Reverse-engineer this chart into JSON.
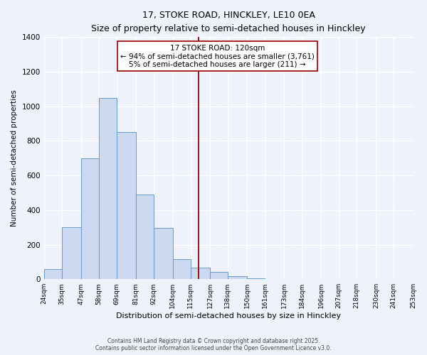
{
  "title_line1": "17, STOKE ROAD, HINCKLEY, LE10 0EA",
  "title_line2": "Size of property relative to semi-detached houses in Hinckley",
  "xlabel": "Distribution of semi-detached houses by size in Hinckley",
  "ylabel": "Number of semi-detached properties",
  "bar_color": "#ccd9f0",
  "bar_edge_color": "#6699cc",
  "background_color": "#eef2fb",
  "grid_color": "#ffffff",
  "bins": [
    24,
    35,
    47,
    58,
    69,
    81,
    92,
    104,
    115,
    127,
    138,
    150,
    161,
    173,
    184,
    196,
    207,
    218,
    230,
    241,
    253
  ],
  "bin_labels": [
    "24sqm",
    "35sqm",
    "47sqm",
    "58sqm",
    "69sqm",
    "81sqm",
    "92sqm",
    "104sqm",
    "115sqm",
    "127sqm",
    "138sqm",
    "150sqm",
    "161sqm",
    "173sqm",
    "184sqm",
    "196sqm",
    "207sqm",
    "218sqm",
    "230sqm",
    "241sqm",
    "253sqm"
  ],
  "counts": [
    60,
    300,
    700,
    1050,
    850,
    490,
    295,
    115,
    65,
    40,
    18,
    5,
    0,
    0,
    0,
    0,
    0,
    0,
    0,
    0
  ],
  "vline_x": 120,
  "vline_color": "#990000",
  "annotation_title": "17 STOKE ROAD: 120sqm",
  "annotation_line1": "← 94% of semi-detached houses are smaller (3,761)",
  "annotation_line2": "5% of semi-detached houses are larger (211) →",
  "ylim": [
    0,
    1400
  ],
  "yticks": [
    0,
    200,
    400,
    600,
    800,
    1000,
    1200,
    1400
  ],
  "footer_line1": "Contains HM Land Registry data © Crown copyright and database right 2025.",
  "footer_line2": "Contains public sector information licensed under the Open Government Licence v3.0."
}
